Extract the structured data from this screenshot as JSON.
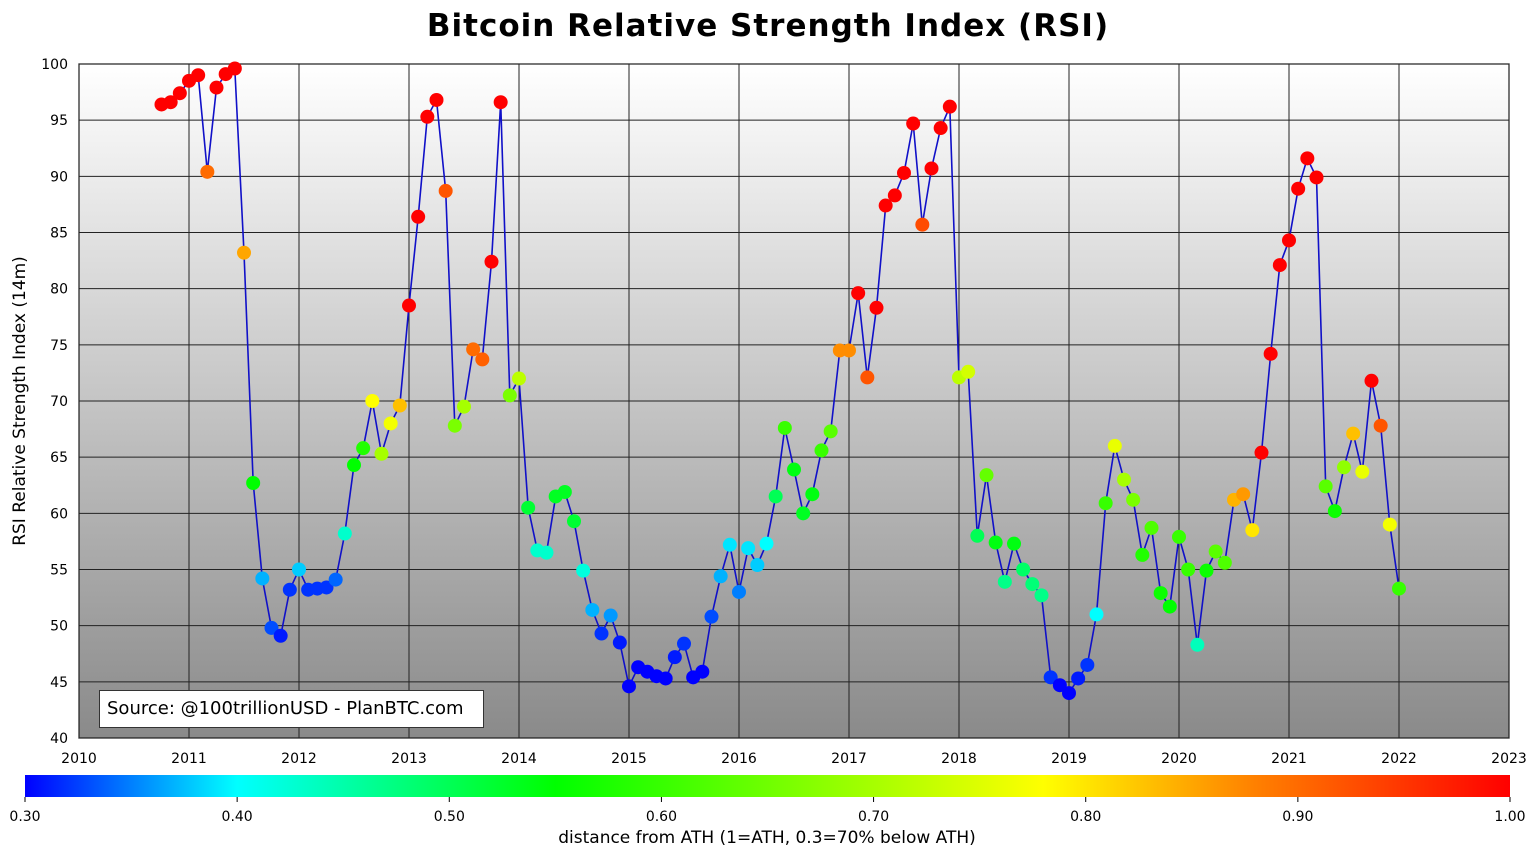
{
  "chart_data": {
    "type": "scatter",
    "title": "Bitcoin Relative Strength Index (RSI)",
    "ylabel": "RSI Relative Strength Index (14m)",
    "xlabel": "",
    "xlim": [
      2010,
      2023
    ],
    "ylim": [
      40,
      100
    ],
    "x_ticks": [
      "2010",
      "2011",
      "2012",
      "2013",
      "2014",
      "2015",
      "2016",
      "2017",
      "2018",
      "2019",
      "2020",
      "2021",
      "2022",
      "2023"
    ],
    "y_ticks": [
      "40",
      "45",
      "50",
      "55",
      "60",
      "65",
      "70",
      "75",
      "80",
      "85",
      "90",
      "95",
      "100"
    ],
    "grid": true,
    "line_color": "#1010c8",
    "annotation": "Source: @100trillionUSD  -  PlanBTC.com",
    "colorbar": {
      "label": "distance from ATH (1=ATH, 0.3=70% below ATH)",
      "range": [
        0.3,
        1.0
      ],
      "ticks": [
        "0.30",
        "0.40",
        "0.50",
        "0.60",
        "0.70",
        "0.80",
        "0.90",
        "1.00"
      ],
      "colormap": [
        "#0000ff",
        "#00ffff",
        "#00ff00",
        "#ffff00",
        "#ff8000",
        "#ff0000"
      ]
    },
    "point_fields": [
      "month",
      "rsi",
      "distance_from_ath"
    ],
    "points": [
      [
        "2010-10",
        96.4,
        1.0
      ],
      [
        "2010-11",
        96.6,
        1.0
      ],
      [
        "2010-12",
        97.4,
        1.0
      ],
      [
        "2011-01",
        98.5,
        1.0
      ],
      [
        "2011-02",
        99.0,
        1.0
      ],
      [
        "2011-03",
        90.4,
        0.9
      ],
      [
        "2011-04",
        97.9,
        1.0
      ],
      [
        "2011-05",
        99.1,
        1.0
      ],
      [
        "2011-06",
        99.6,
        1.0
      ],
      [
        "2011-07",
        83.2,
        0.85
      ],
      [
        "2011-08",
        62.7,
        0.55
      ],
      [
        "2011-09",
        54.2,
        0.37
      ],
      [
        "2011-10",
        49.8,
        0.33
      ],
      [
        "2011-11",
        49.1,
        0.31
      ],
      [
        "2011-12",
        53.2,
        0.32
      ],
      [
        "2012-01",
        55.0,
        0.38
      ],
      [
        "2012-02",
        53.2,
        0.32
      ],
      [
        "2012-03",
        53.3,
        0.32
      ],
      [
        "2012-04",
        53.4,
        0.32
      ],
      [
        "2012-05",
        54.1,
        0.34
      ],
      [
        "2012-06",
        58.2,
        0.43
      ],
      [
        "2012-07",
        64.3,
        0.55
      ],
      [
        "2012-08",
        65.8,
        0.58
      ],
      [
        "2012-09",
        70.0,
        0.78
      ],
      [
        "2012-10",
        65.3,
        0.7
      ],
      [
        "2012-11",
        68.0,
        0.77
      ],
      [
        "2012-12",
        69.6,
        0.83
      ],
      [
        "2013-01",
        78.5,
        1.0
      ],
      [
        "2013-02",
        86.4,
        1.0
      ],
      [
        "2013-03",
        95.3,
        1.0
      ],
      [
        "2013-04",
        96.8,
        1.0
      ],
      [
        "2013-05",
        88.7,
        0.92
      ],
      [
        "2013-06",
        67.8,
        0.66
      ],
      [
        "2013-07",
        69.5,
        0.7
      ],
      [
        "2013-08",
        74.6,
        0.9
      ],
      [
        "2013-09",
        73.7,
        0.91
      ],
      [
        "2013-10",
        82.4,
        1.0
      ],
      [
        "2013-11",
        96.6,
        1.0
      ],
      [
        "2013-12",
        70.5,
        0.66
      ],
      [
        "2014-01",
        72.0,
        0.72
      ],
      [
        "2014-02",
        60.5,
        0.52
      ],
      [
        "2014-03",
        56.7,
        0.43
      ],
      [
        "2014-04",
        56.5,
        0.43
      ],
      [
        "2014-05",
        61.5,
        0.53
      ],
      [
        "2014-06",
        61.9,
        0.53
      ],
      [
        "2014-07",
        59.3,
        0.52
      ],
      [
        "2014-08",
        54.9,
        0.42
      ],
      [
        "2014-09",
        51.4,
        0.37
      ],
      [
        "2014-10",
        49.3,
        0.32
      ],
      [
        "2014-11",
        50.9,
        0.36
      ],
      [
        "2014-12",
        48.5,
        0.31
      ],
      [
        "2015-01",
        44.6,
        0.3
      ],
      [
        "2015-02",
        46.3,
        0.3
      ],
      [
        "2015-03",
        45.9,
        0.3
      ],
      [
        "2015-04",
        45.5,
        0.3
      ],
      [
        "2015-05",
        45.3,
        0.3
      ],
      [
        "2015-06",
        47.2,
        0.31
      ],
      [
        "2015-07",
        48.4,
        0.32
      ],
      [
        "2015-08",
        45.4,
        0.3
      ],
      [
        "2015-09",
        45.9,
        0.3
      ],
      [
        "2015-10",
        50.8,
        0.33
      ],
      [
        "2015-11",
        54.4,
        0.37
      ],
      [
        "2015-12",
        57.2,
        0.39
      ],
      [
        "2016-01",
        53.0,
        0.35
      ],
      [
        "2016-02",
        56.9,
        0.39
      ],
      [
        "2016-03",
        55.4,
        0.38
      ],
      [
        "2016-04",
        57.3,
        0.4
      ],
      [
        "2016-05",
        61.5,
        0.5
      ],
      [
        "2016-06",
        67.6,
        0.6
      ],
      [
        "2016-07",
        63.9,
        0.54
      ],
      [
        "2016-08",
        60.0,
        0.53
      ],
      [
        "2016-09",
        61.7,
        0.54
      ],
      [
        "2016-10",
        65.6,
        0.6
      ],
      [
        "2016-11",
        67.3,
        0.63
      ],
      [
        "2016-12",
        74.5,
        0.87
      ],
      [
        "2017-01",
        74.5,
        0.87
      ],
      [
        "2017-02",
        79.6,
        1.0
      ],
      [
        "2017-03",
        72.1,
        0.92
      ],
      [
        "2017-04",
        78.3,
        1.0
      ],
      [
        "2017-05",
        87.4,
        1.0
      ],
      [
        "2017-06",
        88.3,
        1.0
      ],
      [
        "2017-07",
        90.3,
        1.0
      ],
      [
        "2017-08",
        94.7,
        1.0
      ],
      [
        "2017-09",
        85.7,
        0.93
      ],
      [
        "2017-10",
        90.7,
        1.0
      ],
      [
        "2017-11",
        94.3,
        1.0
      ],
      [
        "2017-12",
        96.2,
        1.0
      ],
      [
        "2018-01",
        72.1,
        0.72
      ],
      [
        "2018-02",
        72.6,
        0.74
      ],
      [
        "2018-03",
        58.0,
        0.5
      ],
      [
        "2018-04",
        63.4,
        0.64
      ],
      [
        "2018-05",
        57.4,
        0.54
      ],
      [
        "2018-06",
        53.9,
        0.47
      ],
      [
        "2018-07",
        57.3,
        0.54
      ],
      [
        "2018-08",
        55.0,
        0.49
      ],
      [
        "2018-09",
        53.7,
        0.48
      ],
      [
        "2018-10",
        52.7,
        0.47
      ],
      [
        "2018-11",
        45.4,
        0.32
      ],
      [
        "2018-12",
        44.7,
        0.3
      ],
      [
        "2019-01",
        44.0,
        0.3
      ],
      [
        "2019-02",
        45.3,
        0.31
      ],
      [
        "2019-03",
        46.5,
        0.32
      ],
      [
        "2019-04",
        51.0,
        0.4
      ],
      [
        "2019-05",
        60.9,
        0.6
      ],
      [
        "2019-06",
        66.0,
        0.76
      ],
      [
        "2019-07",
        63.0,
        0.7
      ],
      [
        "2019-08",
        61.2,
        0.66
      ],
      [
        "2019-09",
        56.3,
        0.58
      ],
      [
        "2019-10",
        58.7,
        0.62
      ],
      [
        "2019-11",
        52.9,
        0.56
      ],
      [
        "2019-12",
        51.7,
        0.55
      ],
      [
        "2020-01",
        57.9,
        0.6
      ],
      [
        "2020-02",
        55.0,
        0.6
      ],
      [
        "2020-03",
        48.3,
        0.44
      ],
      [
        "2020-04",
        54.9,
        0.56
      ],
      [
        "2020-05",
        56.6,
        0.63
      ],
      [
        "2020-06",
        55.6,
        0.62
      ],
      [
        "2020-07",
        61.2,
        0.84
      ],
      [
        "2020-08",
        61.7,
        0.86
      ],
      [
        "2020-09",
        58.5,
        0.8
      ],
      [
        "2020-10",
        65.4,
        1.0
      ],
      [
        "2020-11",
        74.2,
        1.0
      ],
      [
        "2020-12",
        82.1,
        1.0
      ],
      [
        "2021-01",
        84.3,
        1.0
      ],
      [
        "2021-02",
        88.9,
        1.0
      ],
      [
        "2021-03",
        91.6,
        1.0
      ],
      [
        "2021-04",
        89.9,
        1.0
      ],
      [
        "2021-05",
        62.4,
        0.63
      ],
      [
        "2021-06",
        60.2,
        0.56
      ],
      [
        "2021-07",
        64.1,
        0.68
      ],
      [
        "2021-08",
        67.1,
        0.83
      ],
      [
        "2021-09",
        63.7,
        0.76
      ],
      [
        "2021-10",
        71.8,
        1.0
      ],
      [
        "2021-11",
        67.8,
        0.92
      ],
      [
        "2021-12",
        59.0,
        0.77
      ],
      [
        "2022-01",
        53.3,
        0.6
      ]
    ]
  }
}
